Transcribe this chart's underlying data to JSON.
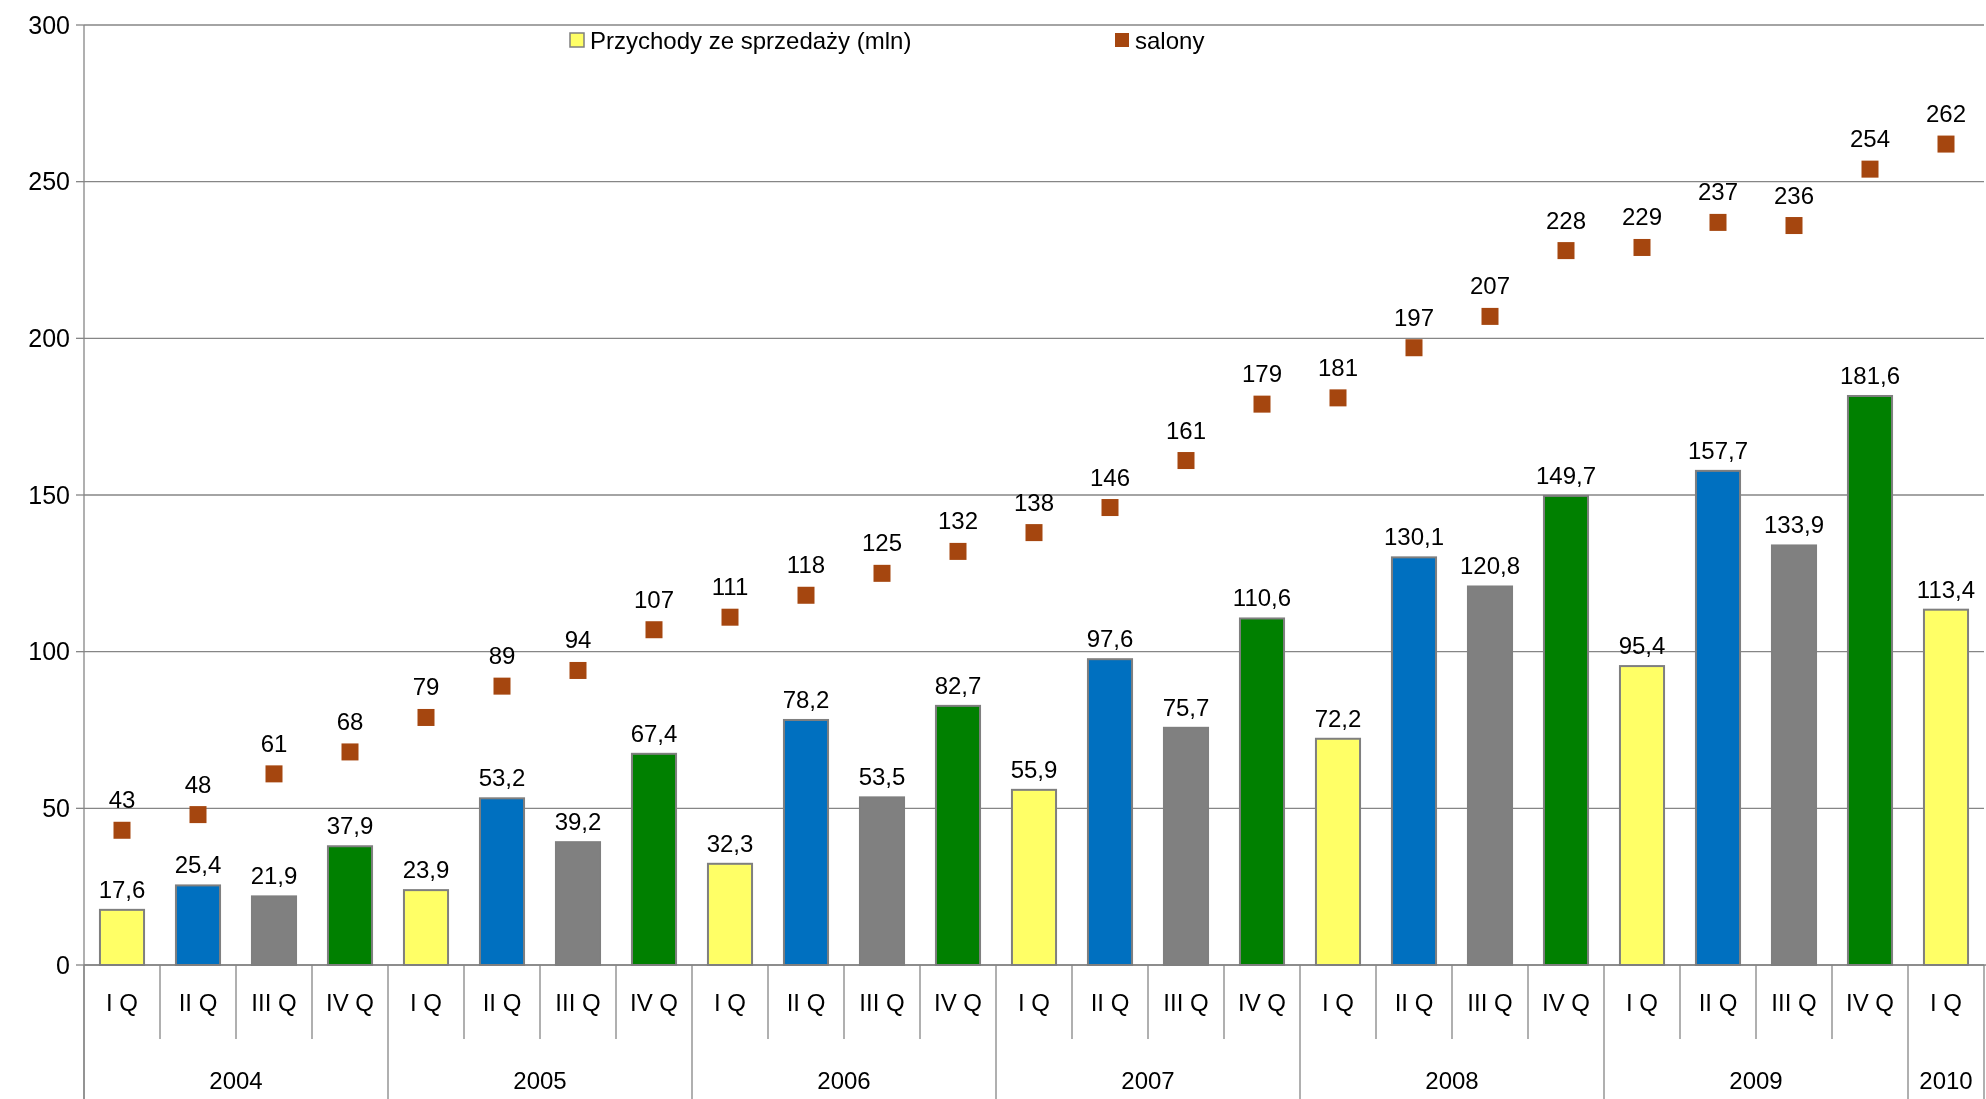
{
  "chart_data": {
    "type": "bar",
    "categories": [
      "I Q",
      "II Q",
      "III Q",
      "IV Q",
      "I Q",
      "II Q",
      "III Q",
      "IV Q",
      "I Q",
      "II Q",
      "III Q",
      "IV Q",
      "I Q",
      "II Q",
      "III Q",
      "IV Q",
      "I Q",
      "II Q",
      "III Q",
      "IV Q",
      "I Q",
      "II Q",
      "III Q",
      "IV Q",
      "I Q"
    ],
    "series": [
      {
        "name": "Przychody ze sprzedaży (mln)",
        "colors": [
          "#ffff66",
          "#0070c0",
          "#808080",
          "#008000",
          "#ffff66",
          "#0070c0",
          "#808080",
          "#008000",
          "#ffff66",
          "#0070c0",
          "#808080",
          "#008000",
          "#ffff66",
          "#0070c0",
          "#808080",
          "#008000",
          "#ffff66",
          "#0070c0",
          "#808080",
          "#008000",
          "#ffff66",
          "#0070c0",
          "#808080",
          "#008000",
          "#ffff66"
        ],
        "color": "#ffff66",
        "values": [
          17.6,
          25.4,
          21.9,
          37.9,
          23.9,
          53.2,
          39.2,
          67.4,
          32.3,
          78.2,
          53.5,
          82.7,
          55.9,
          97.6,
          75.7,
          110.6,
          72.2,
          130.1,
          120.8,
          149.7,
          95.4,
          157.7,
          133.9,
          181.6,
          113.4
        ],
        "value_labels": [
          "17,6",
          "25,4",
          "21,9",
          "37,9",
          "23,9",
          "53,2",
          "39,2",
          "67,4",
          "32,3",
          "78,2",
          "53,5",
          "82,7",
          "55,9",
          "97,6",
          "75,7",
          "110,6",
          "72,2",
          "130,1",
          "120,8",
          "149,7",
          "95,4",
          "157,7",
          "133,9",
          "181,6",
          "113,4"
        ]
      },
      {
        "name": "salony",
        "type": "scatter",
        "marker": "square",
        "color": "#a5460f",
        "values": [
          43,
          48,
          61,
          68,
          79,
          89,
          94,
          107,
          111,
          118,
          125,
          132,
          138,
          146,
          161,
          179,
          181,
          197,
          207,
          228,
          229,
          237,
          236,
          254,
          262
        ],
        "value_labels": [
          "43",
          "48",
          "61",
          "68",
          "79",
          "89",
          "94",
          "107",
          "111",
          "118",
          "125",
          "132",
          "138",
          "146",
          "161",
          "179",
          "181",
          "197",
          "207",
          "228",
          "229",
          "237",
          "236",
          "254",
          "262"
        ]
      }
    ],
    "ylim": [
      0,
      300
    ],
    "yticks": [
      0,
      50,
      100,
      150,
      200,
      250,
      300
    ],
    "grid": "y",
    "legend": "top",
    "annotations": [
      "2004",
      "2005",
      "2006",
      "2007",
      "2008",
      "2009",
      "2010"
    ]
  }
}
